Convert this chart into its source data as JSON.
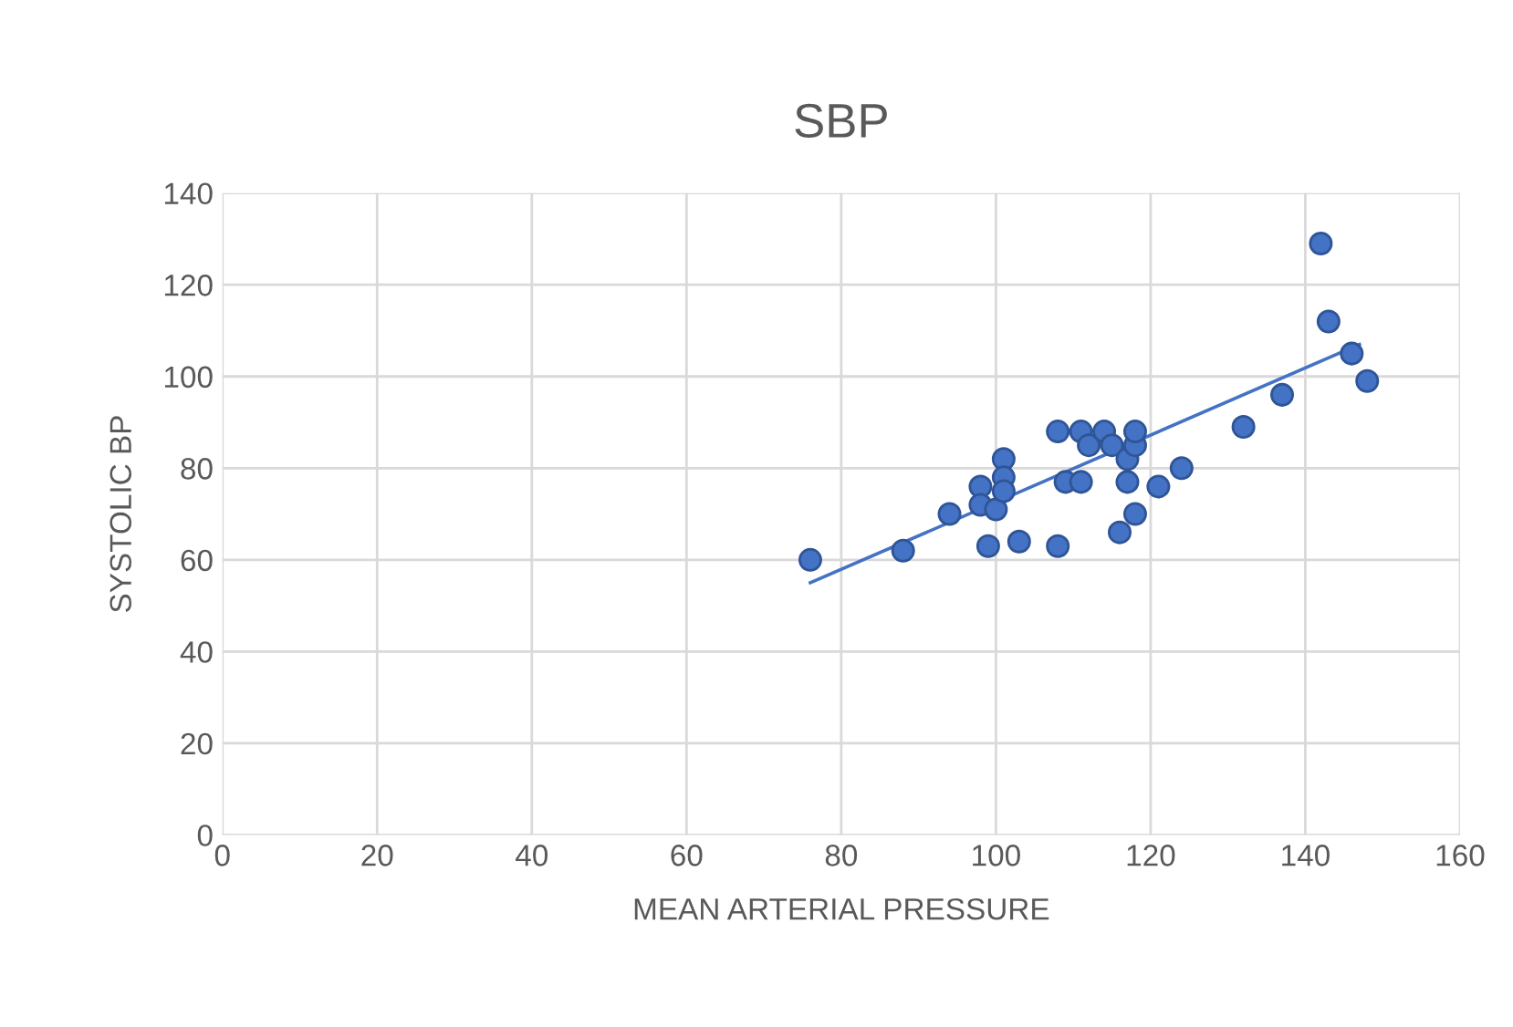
{
  "chart_data": {
    "type": "scatter",
    "title": "SBP",
    "xlabel": "MEAN ARTERIAL PRESSURE",
    "ylabel": "SYSTOLIC BP",
    "series": [
      {
        "color": "#4472c4",
        "marker": "circle",
        "x": [
          76,
          88,
          94,
          98,
          98,
          99,
          100,
          101,
          101,
          101,
          103,
          108,
          108,
          109,
          111,
          111,
          112,
          114,
          115,
          116,
          117,
          117,
          118,
          118,
          118,
          121,
          124,
          132,
          137,
          142,
          143,
          146,
          148
        ],
        "values": [
          60,
          62,
          70,
          76,
          72,
          63,
          71,
          82,
          78,
          75,
          64,
          63,
          88,
          77,
          77,
          88,
          85,
          88,
          85,
          66,
          77,
          82,
          85,
          88,
          70,
          76,
          80,
          89,
          96,
          129,
          112,
          105,
          99
        ]
      },
      {
        "type": "line",
        "color": "#4472c4",
        "marker": "none",
        "line_style": "solid",
        "x": [
          76,
          147
        ],
        "values": [
          55,
          107
        ]
      }
    ],
    "xlim": [
      0,
      160
    ],
    "xticks": [
      0,
      20,
      40,
      60,
      80,
      100,
      120,
      140,
      160
    ],
    "ylim": [
      0,
      140
    ],
    "yticks": [
      0,
      20,
      40,
      60,
      80,
      100,
      120,
      140
    ],
    "grid": true,
    "legend": false
  }
}
